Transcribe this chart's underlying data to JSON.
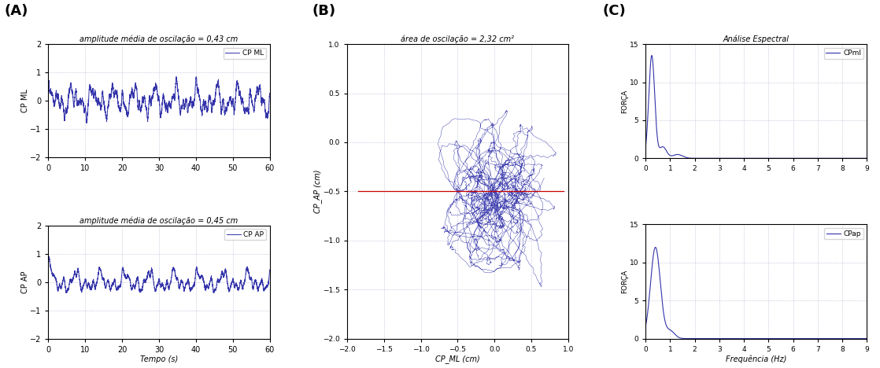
{
  "panel_A_title1": "amplitude média de oscilação = 0,43 cm",
  "panel_A_title2": "amplitude média de oscilação = 0,45 cm",
  "panel_A_ylabel1": "CP ML",
  "panel_A_ylabel2": "CP AP",
  "panel_A_xlabel": "Tempo (s)",
  "panel_A_legend1": "CP ML",
  "panel_A_legend2": "CP AP",
  "panel_A_ylim": [
    -2,
    2
  ],
  "panel_A_xlim": [
    0,
    60
  ],
  "panel_B_title": "área de oscilação = 2,32 cm²",
  "panel_B_xlabel": "CP_ML (cm)",
  "panel_B_ylabel": "CP_AP (cm)",
  "panel_B_xlim": [
    -2,
    1
  ],
  "panel_B_ylim": [
    -2,
    1
  ],
  "panel_B_xticks": [
    -2,
    -1.5,
    -1,
    -0.5,
    0,
    0.5,
    1
  ],
  "panel_B_yticks": [
    -2,
    -1.5,
    -1,
    -0.5,
    0,
    0.5,
    1
  ],
  "panel_C_title": "Análise Espectral",
  "panel_C_ylabel": "FORÇA",
  "panel_C_xlabel": "Frequência (Hz)",
  "panel_C_legend1": "CPml",
  "panel_C_legend2": "CPap",
  "panel_C_xlim": [
    0,
    9
  ],
  "panel_C_ylim": [
    0,
    15
  ],
  "panel_C_yticks": [
    0,
    5,
    10,
    15
  ],
  "panel_C_xticks": [
    0,
    1,
    2,
    3,
    4,
    5,
    6,
    7,
    8,
    9
  ],
  "line_color": "#3333aa",
  "red_line_color": "#cc0000",
  "label_A": "(A)",
  "label_B": "(B)",
  "label_C": "(C)"
}
